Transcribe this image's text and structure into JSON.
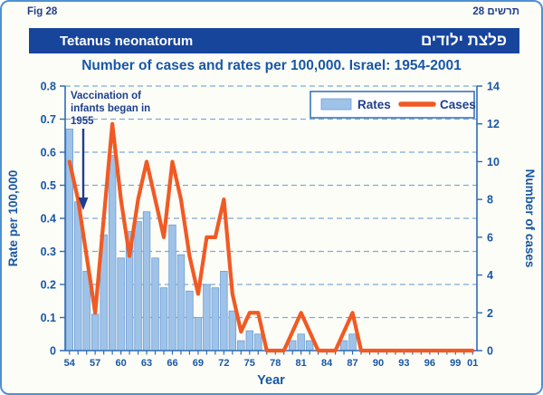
{
  "figure": {
    "fig_label_en": "Fig  28",
    "fig_label_he": "תרשים 28",
    "banner_title_en": "Tetanus neonatorum",
    "banner_title_he": "פלצת ילודים",
    "subtitle": "Number of cases and rates per 100,000. Israel: 1954-2001"
  },
  "legend": {
    "rates_label": "Rates",
    "cases_label": "Cases"
  },
  "annotation": {
    "lines": [
      "Vaccination of",
      "infants began in",
      "1955"
    ],
    "arrow_points_between_years": [
      1955,
      1956
    ]
  },
  "chart_data": {
    "type": "bar+line",
    "title": "Tetanus neonatorum — Number of cases and rates per 100,000. Israel: 1954-2001",
    "xlabel": "Year",
    "ylabel_left": "Rate per 100,000",
    "ylabel_right": "Number of cases",
    "ylim_left": [
      0,
      0.8
    ],
    "ylim_right": [
      0,
      14
    ],
    "yticks_left": [
      0,
      0.1,
      0.2,
      0.3,
      0.4,
      0.5,
      0.6,
      0.7,
      0.8
    ],
    "yticks_right": [
      0,
      2,
      4,
      6,
      8,
      10,
      12,
      14
    ],
    "grid": "horizontal-dashed",
    "legend_position": "top-right",
    "years": [
      1954,
      1955,
      1956,
      1957,
      1958,
      1959,
      1960,
      1961,
      1962,
      1963,
      1964,
      1965,
      1966,
      1967,
      1968,
      1969,
      1970,
      1971,
      1972,
      1973,
      1974,
      1975,
      1976,
      1977,
      1978,
      1979,
      1980,
      1981,
      1982,
      1983,
      1984,
      1985,
      1986,
      1987,
      1988,
      1989,
      1990,
      1991,
      1992,
      1993,
      1994,
      1995,
      1996,
      1997,
      1998,
      1999,
      2000,
      2001
    ],
    "x_tick_years": [
      1954,
      1957,
      1960,
      1963,
      1966,
      1969,
      1972,
      1975,
      1978,
      1981,
      1984,
      1987,
      1990,
      1993,
      1996,
      1999,
      2001
    ],
    "x_tick_labels": [
      "54",
      "57",
      "60",
      "63",
      "66",
      "69",
      "72",
      "75",
      "78",
      "81",
      "84",
      "87",
      "90",
      "93",
      "96",
      "99",
      "01"
    ],
    "series": [
      {
        "name": "Rates",
        "type": "bar",
        "axis": "left",
        "values": [
          0.67,
          0.45,
          0.24,
          0.11,
          0.35,
          0.59,
          0.28,
          0.36,
          0.39,
          0.42,
          0.28,
          0.19,
          0.38,
          0.29,
          0.18,
          0.1,
          0.2,
          0.19,
          0.24,
          0.12,
          0.03,
          0.06,
          0.05,
          0,
          0,
          0,
          0.03,
          0.05,
          0.03,
          0,
          0,
          0,
          0.03,
          0.05,
          0,
          0,
          0,
          0,
          0,
          0,
          0,
          0,
          0,
          0,
          0,
          0,
          0,
          0
        ]
      },
      {
        "name": "Cases",
        "type": "line",
        "axis": "right",
        "values": [
          10,
          8,
          5,
          2,
          7,
          12,
          8,
          5,
          8,
          10,
          8,
          6,
          10,
          8,
          5,
          3,
          6,
          6,
          8,
          3,
          1,
          2,
          2,
          0,
          0,
          0,
          1,
          2,
          1,
          0,
          0,
          0,
          1,
          2,
          0,
          0,
          0,
          0,
          0,
          0,
          0,
          0,
          0,
          0,
          0,
          0,
          0,
          0
        ]
      }
    ]
  },
  "colors": {
    "banner_bg": "#17459c",
    "banner_text": "#ffffff",
    "title_blue": "#1857a6",
    "label_navy": "#1d3e8f",
    "bar_fill": "#9fc3e8",
    "bar_stroke": "#6b9cd6",
    "line_orange": "#f15a24",
    "grid_blue": "#7baad9",
    "axis_line": "#2e6cb5",
    "frame": "#4f91d2",
    "page_bg": "#fdfdf7"
  }
}
